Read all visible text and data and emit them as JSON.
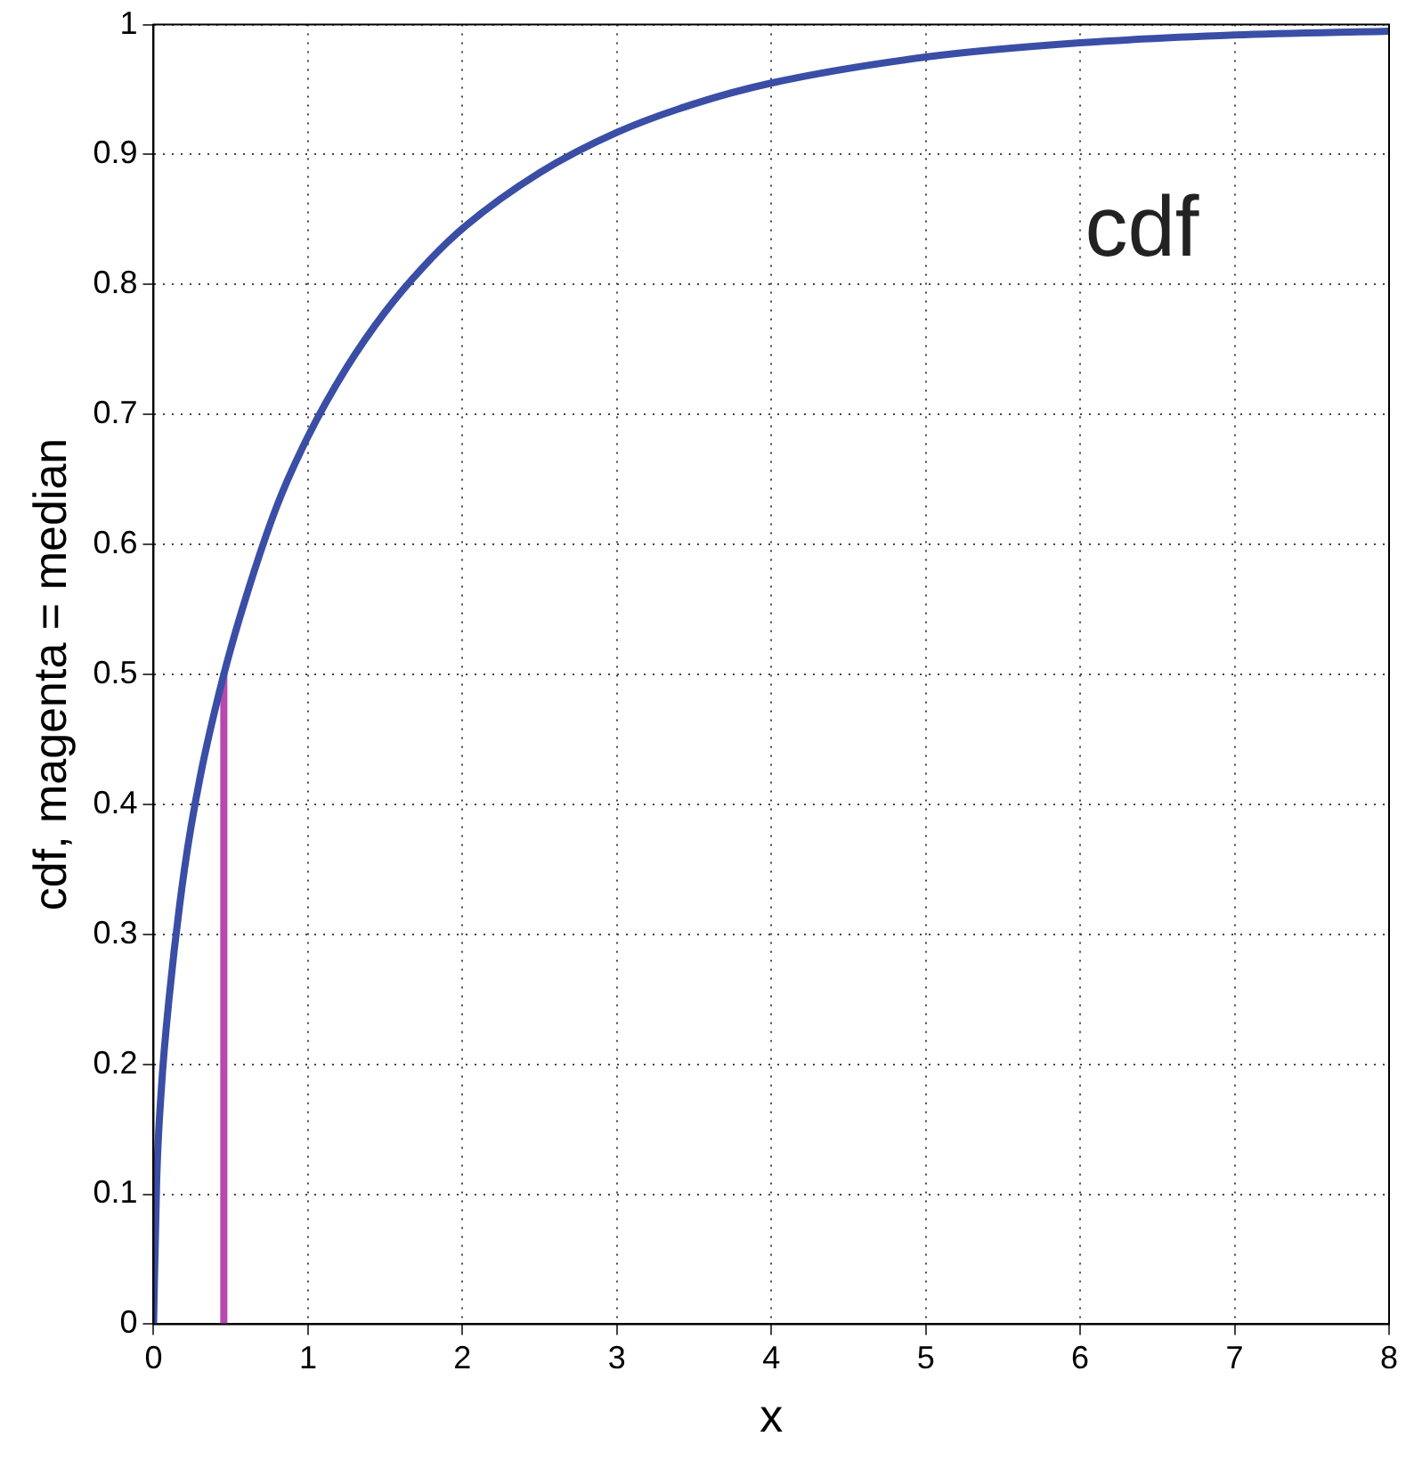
{
  "chart_data": {
    "type": "line",
    "xlabel": "x",
    "ylabel": "cdf, magenta = median",
    "annotations": [
      "cdf"
    ],
    "series": [
      {
        "color": "#3a4ea6",
        "x": [
          0,
          0.02,
          0.05,
          0.1,
          0.2,
          0.3,
          0.455,
          0.6,
          0.8,
          1,
          1.25,
          1.5,
          1.75,
          2,
          2.5,
          3,
          3.5,
          4,
          5,
          6,
          7,
          8
        ],
        "values": [
          0,
          0.11,
          0.18,
          0.25,
          0.35,
          0.42,
          0.5,
          0.56,
          0.63,
          0.683,
          0.736,
          0.779,
          0.814,
          0.843,
          0.886,
          0.917,
          0.939,
          0.955,
          0.975,
          0.986,
          0.992,
          0.995
        ]
      },
      {
        "color": "#b848b0",
        "x": [
          0.455,
          0.455
        ],
        "values": [
          0,
          0.5
        ]
      }
    ],
    "xlim": [
      0,
      8
    ],
    "xticks": [
      0,
      1,
      2,
      3,
      4,
      5,
      6,
      7,
      8
    ],
    "ylim": [
      0,
      1
    ],
    "yticks": [
      0,
      0.1,
      0.2,
      0.3,
      0.4,
      0.5,
      0.6,
      0.7,
      0.8,
      0.9,
      1
    ],
    "grid": true,
    "line_style": "solid",
    "marker": "none",
    "legend": false
  }
}
